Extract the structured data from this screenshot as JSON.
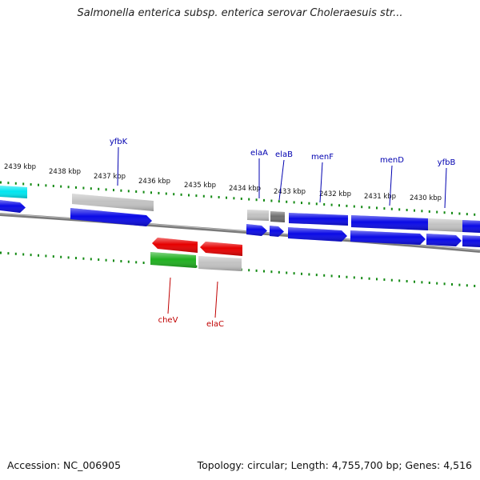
{
  "title": "Salmonella enterica subsp. enterica serovar Choleraesuis str...",
  "footer": {
    "accession": "Accession: NC_006905",
    "stats": "Topology: circular; Length: 4,755,700 bp; Genes: 4,516"
  },
  "colors": {
    "forward": "#0a0ae6",
    "reverse": "#e60000",
    "cyan": "#00e6f0",
    "gray": "#c2c2c2",
    "darkgray": "#707070",
    "green": "#20b020",
    "tick": "#138a13",
    "label_forward": "#0000b0",
    "label_reverse": "#c00000"
  },
  "kbp_labels": [
    "2439 kbp",
    "2438 kbp",
    "2437 kbp",
    "2436 kbp",
    "2435 kbp",
    "2434 kbp",
    "2433 kbp",
    "2432 kbp",
    "2431 kbp",
    "2430 kbp"
  ],
  "forward_labels": [
    "yfbK",
    "elaA",
    "elaB",
    "menF",
    "menD",
    "yfbB"
  ],
  "reverse_labels": [
    "cheV",
    "elaC"
  ]
}
